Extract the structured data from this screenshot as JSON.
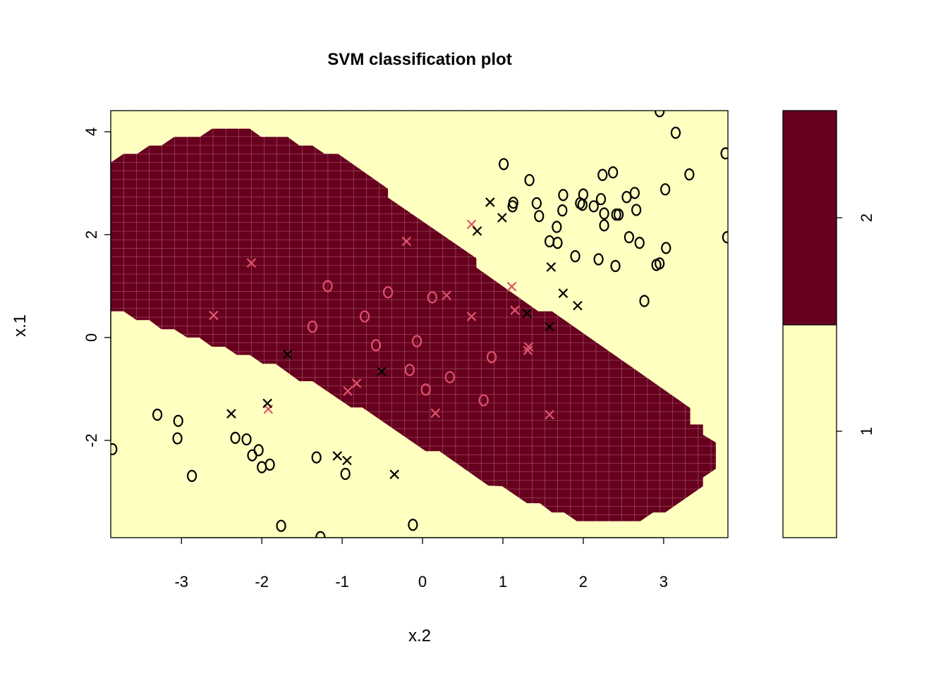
{
  "chart_data": {
    "type": "scatter",
    "title": "SVM classification plot",
    "xlabel": "x.2",
    "ylabel": "x.1",
    "xlim": [
      -3.88,
      3.8
    ],
    "ylim": [
      -3.89,
      4.41
    ],
    "xticks": [
      -3,
      -2,
      -1,
      0,
      1,
      2,
      3
    ],
    "yticks": [
      -2,
      0,
      2,
      4
    ],
    "grid": false,
    "colors": {
      "class_1_region": "#FFFFBF",
      "class_2_region": "#67001F",
      "support_vector": "#DF536B",
      "point": "#000000"
    },
    "legend": {
      "placement": "right",
      "levels": [
        "1",
        "2"
      ]
    },
    "class_2_region": [
      [
        -3.88,
        3.4
      ],
      [
        -3.72,
        3.57
      ],
      [
        -3.55,
        3.57
      ],
      [
        -3.4,
        3.73
      ],
      [
        -3.25,
        3.73
      ],
      [
        -3.09,
        3.9
      ],
      [
        -2.77,
        3.9
      ],
      [
        -2.62,
        4.06
      ],
      [
        -2.15,
        4.06
      ],
      [
        -2.01,
        3.9
      ],
      [
        -1.68,
        3.9
      ],
      [
        -1.53,
        3.73
      ],
      [
        -1.37,
        3.73
      ],
      [
        -1.22,
        3.57
      ],
      [
        -1.05,
        3.57
      ],
      [
        -0.43,
        2.89
      ],
      [
        -0.43,
        2.72
      ],
      [
        0.67,
        1.54
      ],
      [
        0.67,
        1.36
      ],
      [
        1.44,
        0.51
      ],
      [
        1.61,
        0.51
      ],
      [
        3.33,
        -1.37
      ],
      [
        3.33,
        -1.69
      ],
      [
        3.49,
        -1.69
      ],
      [
        3.49,
        -1.89
      ],
      [
        3.65,
        -2.04
      ],
      [
        3.65,
        -2.55
      ],
      [
        3.49,
        -2.72
      ],
      [
        3.49,
        -2.89
      ],
      [
        3.02,
        -3.4
      ],
      [
        2.87,
        -3.4
      ],
      [
        2.71,
        -3.57
      ],
      [
        1.92,
        -3.57
      ],
      [
        1.76,
        -3.4
      ],
      [
        1.61,
        -3.4
      ],
      [
        1.46,
        -3.22
      ],
      [
        1.3,
        -3.22
      ],
      [
        0.99,
        -2.89
      ],
      [
        0.82,
        -2.88
      ],
      [
        0.21,
        -2.21
      ],
      [
        0.04,
        -2.21
      ],
      [
        -0.75,
        -1.36
      ],
      [
        -0.89,
        -1.36
      ],
      [
        -1.37,
        -0.85
      ],
      [
        -1.53,
        -0.85
      ],
      [
        -1.83,
        -0.51
      ],
      [
        -1.99,
        -0.51
      ],
      [
        -2.15,
        -0.34
      ],
      [
        -2.31,
        -0.34
      ],
      [
        -2.46,
        -0.18
      ],
      [
        -2.62,
        -0.18
      ],
      [
        -2.78,
        0.0
      ],
      [
        -2.93,
        0.0
      ],
      [
        -3.09,
        0.16
      ],
      [
        -3.25,
        0.16
      ],
      [
        -3.4,
        0.34
      ],
      [
        -3.56,
        0.34
      ],
      [
        -3.72,
        0.51
      ],
      [
        -3.88,
        0.51
      ]
    ],
    "points": {
      "support_x": [
        [
          -2.13,
          1.45
        ],
        [
          -2.6,
          0.43
        ],
        [
          -0.2,
          1.87
        ],
        [
          0.61,
          2.2
        ],
        [
          0.3,
          0.82
        ],
        [
          0.61,
          0.41
        ],
        [
          1.11,
          0.99
        ],
        [
          1.15,
          0.53
        ],
        [
          1.32,
          -0.18
        ],
        [
          1.31,
          -0.25
        ],
        [
          0.16,
          -1.47
        ],
        [
          1.58,
          -1.5
        ],
        [
          -0.93,
          -1.04
        ],
        [
          -0.82,
          -0.89
        ],
        [
          -1.92,
          -1.39
        ]
      ],
      "support_o": [
        [
          -1.18,
          1.0
        ],
        [
          -0.43,
          0.88
        ],
        [
          0.12,
          0.78
        ],
        [
          -1.37,
          0.21
        ],
        [
          -0.72,
          0.41
        ],
        [
          -0.58,
          -0.15
        ],
        [
          -0.07,
          -0.07
        ],
        [
          -0.16,
          -0.63
        ],
        [
          0.04,
          -1.01
        ],
        [
          0.34,
          -0.77
        ],
        [
          0.86,
          -0.38
        ],
        [
          0.76,
          -1.22
        ]
      ],
      "data_x": [
        [
          -1.68,
          -0.33
        ],
        [
          -0.51,
          -0.66
        ],
        [
          1.3,
          0.47
        ],
        [
          1.58,
          0.21
        ],
        [
          -1.93,
          -1.28
        ],
        [
          0.84,
          2.63
        ],
        [
          0.99,
          2.33
        ],
        [
          0.68,
          2.07
        ],
        [
          1.6,
          1.37
        ],
        [
          1.75,
          0.86
        ],
        [
          1.93,
          0.62
        ],
        [
          -2.38,
          -1.48
        ],
        [
          -1.06,
          -2.3
        ],
        [
          -0.94,
          -2.39
        ],
        [
          -0.35,
          -2.66
        ]
      ],
      "data_o": [
        [
          1.01,
          3.37
        ],
        [
          1.33,
          3.06
        ],
        [
          1.13,
          2.62
        ],
        [
          1.12,
          2.55
        ],
        [
          1.42,
          2.61
        ],
        [
          1.45,
          2.36
        ],
        [
          1.75,
          2.77
        ],
        [
          1.74,
          2.47
        ],
        [
          1.67,
          2.15
        ],
        [
          1.58,
          1.87
        ],
        [
          1.68,
          1.84
        ],
        [
          2.0,
          2.78
        ],
        [
          1.96,
          2.61
        ],
        [
          1.99,
          2.58
        ],
        [
          2.13,
          2.55
        ],
        [
          2.22,
          2.69
        ],
        [
          2.26,
          2.41
        ],
        [
          2.26,
          2.18
        ],
        [
          2.24,
          3.16
        ],
        [
          2.37,
          3.21
        ],
        [
          2.54,
          2.73
        ],
        [
          2.64,
          2.81
        ],
        [
          2.66,
          2.48
        ],
        [
          2.41,
          2.39
        ],
        [
          2.44,
          2.39
        ],
        [
          2.57,
          1.95
        ],
        [
          2.7,
          1.84
        ],
        [
          1.9,
          1.58
        ],
        [
          2.19,
          1.52
        ],
        [
          2.4,
          1.39
        ],
        [
          2.91,
          1.41
        ],
        [
          2.95,
          1.44
        ],
        [
          3.03,
          1.74
        ],
        [
          3.02,
          2.88
        ],
        [
          3.32,
          3.17
        ],
        [
          3.15,
          3.98
        ],
        [
          2.95,
          4.4
        ],
        [
          3.77,
          3.58
        ],
        [
          3.79,
          1.95
        ],
        [
          2.76,
          0.71
        ],
        [
          -3.3,
          -1.5
        ],
        [
          -3.04,
          -1.62
        ],
        [
          -3.05,
          -1.96
        ],
        [
          -2.87,
          -2.69
        ],
        [
          -2.33,
          -1.95
        ],
        [
          -2.19,
          -1.98
        ],
        [
          -2.04,
          -2.19
        ],
        [
          -2.12,
          -2.29
        ],
        [
          -2.0,
          -2.52
        ],
        [
          -1.9,
          -2.47
        ],
        [
          -1.32,
          -2.33
        ],
        [
          -0.96,
          -2.65
        ],
        [
          -1.76,
          -3.66
        ],
        [
          -1.27,
          -3.88
        ],
        [
          -0.12,
          -3.64
        ],
        [
          -3.86,
          -2.17
        ]
      ]
    },
    "symbols": {
      "x": "x",
      "o": "o"
    }
  }
}
